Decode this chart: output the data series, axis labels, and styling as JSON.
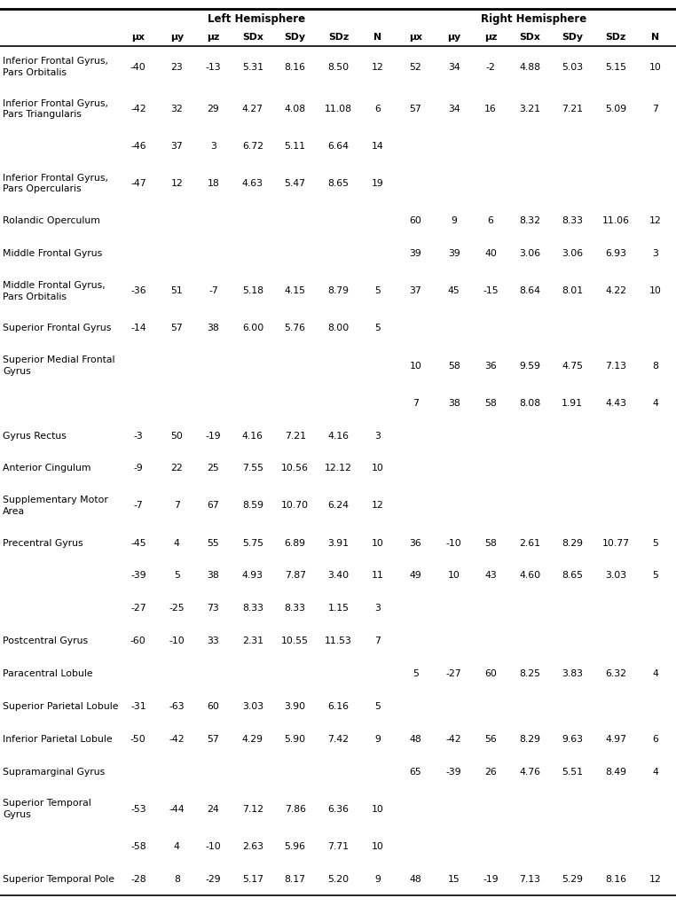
{
  "title_left": "Left Hemisphere",
  "title_right": "Right Hemisphere",
  "col_headers": [
    "μx",
    "μy",
    "μz",
    "SDx",
    "SDy",
    "SDz",
    "N",
    "μx",
    "μy",
    "μz",
    "SDx",
    "SDy",
    "SDz",
    "N"
  ],
  "rows": [
    {
      "label": "Inferior Frontal Gyrus,\nPars Orbitalis",
      "left": [
        "-40",
        "23",
        "-13",
        "5.31",
        "8.16",
        "8.50",
        "12"
      ],
      "right": [
        "52",
        "34",
        "-2",
        "4.88",
        "5.03",
        "5.15",
        "10"
      ],
      "two_line_label": true
    },
    {
      "label": "Inferior Frontal Gyrus,\nPars Triangularis",
      "left": [
        "-42",
        "32",
        "29",
        "4.27",
        "4.08",
        "11.08",
        "6"
      ],
      "right": [
        "57",
        "34",
        "16",
        "3.21",
        "7.21",
        "5.09",
        "7"
      ],
      "two_line_label": true
    },
    {
      "label": "",
      "left": [
        "-46",
        "37",
        "3",
        "6.72",
        "5.11",
        "6.64",
        "14"
      ],
      "right": [
        "",
        "",
        "",
        "",
        "",
        "",
        ""
      ],
      "two_line_label": false
    },
    {
      "label": "Inferior Frontal Gyrus,\nPars Opercularis",
      "left": [
        "-47",
        "12",
        "18",
        "4.63",
        "5.47",
        "8.65",
        "19"
      ],
      "right": [
        "",
        "",
        "",
        "",
        "",
        "",
        ""
      ],
      "two_line_label": true
    },
    {
      "label": "Rolandic Operculum",
      "left": [
        "",
        "",
        "",
        "",
        "",
        "",
        ""
      ],
      "right": [
        "60",
        "9",
        "6",
        "8.32",
        "8.33",
        "11.06",
        "12"
      ],
      "two_line_label": false
    },
    {
      "label": "Middle Frontal Gyrus",
      "left": [
        "",
        "",
        "",
        "",
        "",
        "",
        ""
      ],
      "right": [
        "39",
        "39",
        "40",
        "3.06",
        "3.06",
        "6.93",
        "3"
      ],
      "two_line_label": false
    },
    {
      "label": "Middle Frontal Gyrus,\nPars Orbitalis",
      "left": [
        "-36",
        "51",
        "-7",
        "5.18",
        "4.15",
        "8.79",
        "5"
      ],
      "right": [
        "37",
        "45",
        "-15",
        "8.64",
        "8.01",
        "4.22",
        "10"
      ],
      "two_line_label": true
    },
    {
      "label": "Superior Frontal Gyrus",
      "left": [
        "-14",
        "57",
        "38",
        "6.00",
        "5.76",
        "8.00",
        "5"
      ],
      "right": [
        "",
        "",
        "",
        "",
        "",
        "",
        ""
      ],
      "two_line_label": false
    },
    {
      "label": "Superior Medial Frontal\nGyrus",
      "left": [
        "",
        "",
        "",
        "",
        "",
        "",
        ""
      ],
      "right": [
        "10",
        "58",
        "36",
        "9.59",
        "4.75",
        "7.13",
        "8"
      ],
      "two_line_label": true
    },
    {
      "label": "",
      "left": [
        "",
        "",
        "",
        "",
        "",
        "",
        ""
      ],
      "right": [
        "7",
        "38",
        "58",
        "8.08",
        "1.91",
        "4.43",
        "4"
      ],
      "two_line_label": false
    },
    {
      "label": "Gyrus Rectus",
      "left": [
        "-3",
        "50",
        "-19",
        "4.16",
        "7.21",
        "4.16",
        "3"
      ],
      "right": [
        "",
        "",
        "",
        "",
        "",
        "",
        ""
      ],
      "two_line_label": false
    },
    {
      "label": "Anterior Cingulum",
      "left": [
        "-9",
        "22",
        "25",
        "7.55",
        "10.56",
        "12.12",
        "10"
      ],
      "right": [
        "",
        "",
        "",
        "",
        "",
        "",
        ""
      ],
      "two_line_label": false
    },
    {
      "label": "Supplementary Motor\nArea",
      "left": [
        "-7",
        "7",
        "67",
        "8.59",
        "10.70",
        "6.24",
        "12"
      ],
      "right": [
        "",
        "",
        "",
        "",
        "",
        "",
        ""
      ],
      "two_line_label": true
    },
    {
      "label": "Precentral Gyrus",
      "left": [
        "-45",
        "4",
        "55",
        "5.75",
        "6.89",
        "3.91",
        "10"
      ],
      "right": [
        "36",
        "-10",
        "58",
        "2.61",
        "8.29",
        "10.77",
        "5"
      ],
      "two_line_label": false
    },
    {
      "label": "",
      "left": [
        "-39",
        "5",
        "38",
        "4.93",
        "7.87",
        "3.40",
        "11"
      ],
      "right": [
        "49",
        "10",
        "43",
        "4.60",
        "8.65",
        "3.03",
        "5"
      ],
      "two_line_label": false
    },
    {
      "label": "",
      "left": [
        "-27",
        "-25",
        "73",
        "8.33",
        "8.33",
        "1.15",
        "3"
      ],
      "right": [
        "",
        "",
        "",
        "",
        "",
        "",
        ""
      ],
      "two_line_label": false
    },
    {
      "label": "Postcentral Gyrus",
      "left": [
        "-60",
        "-10",
        "33",
        "2.31",
        "10.55",
        "11.53",
        "7"
      ],
      "right": [
        "",
        "",
        "",
        "",
        "",
        "",
        ""
      ],
      "two_line_label": false
    },
    {
      "label": "Paracentral Lobule",
      "left": [
        "",
        "",
        "",
        "",
        "",
        "",
        ""
      ],
      "right": [
        "5",
        "-27",
        "60",
        "8.25",
        "3.83",
        "6.32",
        "4"
      ],
      "two_line_label": false
    },
    {
      "label": "Superior Parietal Lobule",
      "left": [
        "-31",
        "-63",
        "60",
        "3.03",
        "3.90",
        "6.16",
        "5"
      ],
      "right": [
        "",
        "",
        "",
        "",
        "",
        "",
        ""
      ],
      "two_line_label": false
    },
    {
      "label": "Inferior Parietal Lobule",
      "left": [
        "-50",
        "-42",
        "57",
        "4.29",
        "5.90",
        "7.42",
        "9"
      ],
      "right": [
        "48",
        "-42",
        "56",
        "8.29",
        "9.63",
        "4.97",
        "6"
      ],
      "two_line_label": false
    },
    {
      "label": "Supramarginal Gyrus",
      "left": [
        "",
        "",
        "",
        "",
        "",
        "",
        ""
      ],
      "right": [
        "65",
        "-39",
        "26",
        "4.76",
        "5.51",
        "8.49",
        "4"
      ],
      "two_line_label": false
    },
    {
      "label": "Superior Temporal\nGyrus",
      "left": [
        "-53",
        "-44",
        "24",
        "7.12",
        "7.86",
        "6.36",
        "10"
      ],
      "right": [
        "",
        "",
        "",
        "",
        "",
        "",
        ""
      ],
      "two_line_label": true
    },
    {
      "label": "",
      "left": [
        "-58",
        "4",
        "-10",
        "2.63",
        "5.96",
        "7.71",
        "10"
      ],
      "right": [
        "",
        "",
        "",
        "",
        "",
        "",
        ""
      ],
      "two_line_label": false
    },
    {
      "label": "Superior Temporal Pole",
      "left": [
        "-28",
        "8",
        "-29",
        "5.17",
        "8.17",
        "5.20",
        "9"
      ],
      "right": [
        "48",
        "15",
        "-19",
        "7.13",
        "5.29",
        "8.16",
        "12"
      ],
      "two_line_label": false
    }
  ],
  "font_size": 7.8,
  "label_font_size": 7.8,
  "header_font_size": 8.5,
  "bg_color": "#ffffff",
  "text_color": "#000000"
}
